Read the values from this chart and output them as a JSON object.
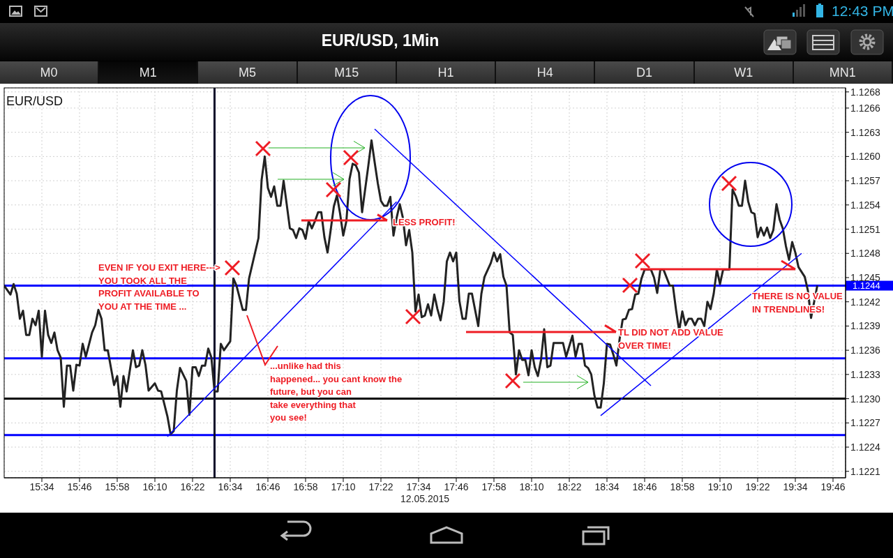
{
  "chart_data": {
    "type": "line",
    "title": "EUR/USD, 1Min",
    "subtitle": "EUR/USD",
    "xlabel": "12.05.2015",
    "x": [
      "2015-05-12T15:22",
      "2015-05-12T15:24",
      "2015-05-12T15:25",
      "2015-05-12T15:26",
      "2015-05-12T15:27",
      "2015-05-12T15:28",
      "2015-05-12T15:29",
      "2015-05-12T15:30",
      "2015-05-12T15:31",
      "2015-05-12T15:32",
      "2015-05-12T15:33",
      "2015-05-12T15:34",
      "2015-05-12T15:35",
      "2015-05-12T15:36",
      "2015-05-12T15:37",
      "2015-05-12T15:38",
      "2015-05-12T15:39",
      "2015-05-12T15:40",
      "2015-05-12T15:41",
      "2015-05-12T15:42",
      "2015-05-12T15:43",
      "2015-05-12T15:44",
      "2015-05-12T15:45",
      "2015-05-12T15:46",
      "2015-05-12T15:47",
      "2015-05-12T15:48",
      "2015-05-12T15:50",
      "2015-05-12T15:51",
      "2015-05-12T15:52",
      "2015-05-12T15:53",
      "2015-05-12T15:54",
      "2015-05-12T15:55",
      "2015-05-12T15:57",
      "2015-05-12T15:58",
      "2015-05-12T15:59",
      "2015-05-12T16:00",
      "2015-05-12T16:01",
      "2015-05-12T16:03",
      "2015-05-12T16:04",
      "2015-05-12T16:05",
      "2015-05-12T16:06",
      "2015-05-12T16:07",
      "2015-05-12T16:08",
      "2015-05-12T16:10",
      "2015-05-12T16:11",
      "2015-05-12T16:12",
      "2015-05-12T16:14",
      "2015-05-12T16:15",
      "2015-05-12T16:16",
      "2015-05-12T16:17",
      "2015-05-12T16:18",
      "2015-05-12T16:20",
      "2015-05-12T16:21",
      "2015-05-12T16:22",
      "2015-05-12T16:23",
      "2015-05-12T16:24",
      "2015-05-12T16:25",
      "2015-05-12T16:26",
      "2015-05-12T16:27",
      "2015-05-12T16:28",
      "2015-05-12T16:29",
      "2015-05-12T16:30",
      "2015-05-12T16:31",
      "2015-05-12T16:32",
      "2015-05-12T16:34",
      "2015-05-12T16:35",
      "2015-05-12T16:36",
      "2015-05-12T16:38",
      "2015-05-12T16:39",
      "2015-05-12T16:40",
      "2015-05-12T16:43",
      "2015-05-12T16:44",
      "2015-05-12T16:45",
      "2015-05-12T16:46",
      "2015-05-12T16:47",
      "2015-05-12T16:48",
      "2015-05-12T16:49",
      "2015-05-12T16:50",
      "2015-05-12T16:51",
      "2015-05-12T16:53",
      "2015-05-12T16:54",
      "2015-05-12T16:55",
      "2015-05-12T16:56",
      "2015-05-12T16:57",
      "2015-05-12T16:58",
      "2015-05-12T16:59",
      "2015-05-12T17:00",
      "2015-05-12T17:01",
      "2015-05-12T17:02",
      "2015-05-12T17:03",
      "2015-05-12T17:04",
      "2015-05-12T17:05",
      "2015-05-12T17:06",
      "2015-05-12T17:07",
      "2015-05-12T17:08",
      "2015-05-12T17:09",
      "2015-05-12T17:10",
      "2015-05-12T17:11",
      "2015-05-12T17:12",
      "2015-05-12T17:13",
      "2015-05-12T17:14",
      "2015-05-12T17:15",
      "2015-05-12T17:16",
      "2015-05-12T17:18",
      "2015-05-12T17:19",
      "2015-05-12T17:20",
      "2015-05-12T17:21",
      "2015-05-12T17:22",
      "2015-05-12T17:23",
      "2015-05-12T17:24",
      "2015-05-12T17:25",
      "2015-05-12T17:26",
      "2015-05-12T17:27",
      "2015-05-12T17:28",
      "2015-05-12T17:29",
      "2015-05-12T17:30",
      "2015-05-12T17:31",
      "2015-05-12T17:32",
      "2015-05-12T17:33",
      "2015-05-12T17:34",
      "2015-05-12T17:35",
      "2015-05-12T17:36",
      "2015-05-12T17:37",
      "2015-05-12T17:38",
      "2015-05-12T17:39",
      "2015-05-12T17:40",
      "2015-05-12T17:41",
      "2015-05-12T17:42",
      "2015-05-12T17:43",
      "2015-05-12T17:44",
      "2015-05-12T17:45",
      "2015-05-12T17:46",
      "2015-05-12T17:47",
      "2015-05-12T17:48",
      "2015-05-12T17:49",
      "2015-05-12T17:50",
      "2015-05-12T17:51",
      "2015-05-12T17:53",
      "2015-05-12T17:54",
      "2015-05-12T17:55",
      "2015-05-12T17:57",
      "2015-05-12T17:58",
      "2015-05-12T17:59",
      "2015-05-12T18:00",
      "2015-05-12T18:01",
      "2015-05-12T18:02",
      "2015-05-12T18:03",
      "2015-05-12T18:04",
      "2015-05-12T18:05",
      "2015-05-12T18:06",
      "2015-05-12T18:07",
      "2015-05-12T18:08",
      "2015-05-12T18:09",
      "2015-05-12T18:10",
      "2015-05-12T18:11",
      "2015-05-12T18:12",
      "2015-05-12T18:13",
      "2015-05-12T18:14",
      "2015-05-12T18:15",
      "2015-05-12T18:16",
      "2015-05-12T18:17",
      "2015-05-12T18:19",
      "2015-05-12T18:20",
      "2015-05-12T18:21",
      "2015-05-12T18:22",
      "2015-05-12T18:23",
      "2015-05-12T18:24",
      "2015-05-12T18:25",
      "2015-05-12T18:26",
      "2015-05-12T18:27",
      "2015-05-12T18:28",
      "2015-05-12T18:29",
      "2015-05-12T18:30",
      "2015-05-12T18:31",
      "2015-05-12T18:32",
      "2015-05-12T18:33",
      "2015-05-12T18:34",
      "2015-05-12T18:35",
      "2015-05-12T18:36",
      "2015-05-12T18:37",
      "2015-05-12T18:38",
      "2015-05-12T18:39",
      "2015-05-12T18:40",
      "2015-05-12T18:41",
      "2015-05-12T18:42",
      "2015-05-12T18:43",
      "2015-05-12T18:44",
      "2015-05-12T18:45",
      "2015-05-12T18:46",
      "2015-05-12T18:48",
      "2015-05-12T18:49",
      "2015-05-12T18:50",
      "2015-05-12T18:51",
      "2015-05-12T18:52",
      "2015-05-12T18:54",
      "2015-05-12T18:55",
      "2015-05-12T18:56",
      "2015-05-12T18:57",
      "2015-05-12T18:58",
      "2015-05-12T18:59",
      "2015-05-12T19:00",
      "2015-05-12T19:01",
      "2015-05-12T19:02",
      "2015-05-12T19:03",
      "2015-05-12T19:04",
      "2015-05-12T19:05",
      "2015-05-12T19:06",
      "2015-05-12T19:07",
      "2015-05-12T19:08",
      "2015-05-12T19:09",
      "2015-05-12T19:10",
      "2015-05-12T19:11",
      "2015-05-12T19:13",
      "2015-05-12T19:14",
      "2015-05-12T19:15",
      "2015-05-12T19:16",
      "2015-05-12T19:17",
      "2015-05-12T19:18",
      "2015-05-12T19:19",
      "2015-05-12T19:20",
      "2015-05-12T19:21",
      "2015-05-12T19:22",
      "2015-05-12T19:23",
      "2015-05-12T19:24",
      "2015-05-12T19:25",
      "2015-05-12T19:26",
      "2015-05-12T19:27",
      "2015-05-12T19:28",
      "2015-05-12T19:29",
      "2015-05-12T19:30",
      "2015-05-12T19:31",
      "2015-05-12T19:32",
      "2015-05-12T19:33",
      "2015-05-12T19:34",
      "2015-05-12T19:35",
      "2015-05-12T19:37",
      "2015-05-12T19:38",
      "2015-05-12T19:39",
      "2015-05-12T19:40",
      "2015-05-12T19:41"
    ],
    "series": [
      {
        "color": "#222222",
        "values": [
          1.1244,
          1.12429,
          1.12442,
          1.1243,
          1.12399,
          1.12409,
          1.12379,
          1.12379,
          1.12399,
          1.12391,
          1.12409,
          1.12352,
          1.12409,
          1.12379,
          1.12369,
          1.12382,
          1.1236,
          1.12351,
          1.1229,
          1.12341,
          1.12341,
          1.1231,
          1.12342,
          1.12341,
          1.12368,
          1.12352,
          1.12382,
          1.12391,
          1.1241,
          1.12399,
          1.1236,
          1.1236,
          1.12317,
          1.12328,
          1.1229,
          1.12328,
          1.12309,
          1.1236,
          1.12339,
          1.12341,
          1.1236,
          1.12342,
          1.1231,
          1.12319,
          1.1231,
          1.12309,
          1.12278,
          1.12256,
          1.1226,
          1.1231,
          1.12338,
          1.12322,
          1.1228,
          1.12339,
          1.12339,
          1.12328,
          1.12341,
          1.12341,
          1.12362,
          1.12351,
          1.12309,
          1.12309,
          1.12368,
          1.1236,
          1.12371,
          1.12449,
          1.1244,
          1.1241,
          1.1241,
          1.12449,
          1.12499,
          1.12571,
          1.126,
          1.12561,
          1.1255,
          1.12563,
          1.12539,
          1.12539,
          1.1257,
          1.12511,
          1.12509,
          1.12499,
          1.12511,
          1.12509,
          1.12498,
          1.1252,
          1.12511,
          1.1252,
          1.12531,
          1.12531,
          1.125,
          1.12481,
          1.12509,
          1.12538,
          1.12552,
          1.12529,
          1.12502,
          1.1252,
          1.12572,
          1.12591,
          1.12589,
          1.1258,
          1.12531,
          1.12589,
          1.1262,
          1.12593,
          1.12567,
          1.12545,
          1.12539,
          1.12539,
          1.1255,
          1.12502,
          1.12524,
          1.12541,
          1.12524,
          1.1249,
          1.12509,
          1.12481,
          1.12408,
          1.12429,
          1.12401,
          1.12403,
          1.12417,
          1.12403,
          1.12429,
          1.12411,
          1.12397,
          1.1242,
          1.1247,
          1.12481,
          1.1247,
          1.12481,
          1.12421,
          1.12399,
          1.12399,
          1.1243,
          1.1243,
          1.1239,
          1.1243,
          1.12451,
          1.12468,
          1.12481,
          1.1247,
          1.12479,
          1.12451,
          1.1244,
          1.12382,
          1.12379,
          1.1233,
          1.1236,
          1.12348,
          1.12348,
          1.12329,
          1.1236,
          1.12339,
          1.12328,
          1.12348,
          1.12386,
          1.12339,
          1.12341,
          1.12369,
          1.12369,
          1.12369,
          1.12352,
          1.12365,
          1.12378,
          1.12352,
          1.12368,
          1.12368,
          1.12341,
          1.12338,
          1.1233,
          1.12304,
          1.12289,
          1.12289,
          1.12319,
          1.12368,
          1.12367,
          1.12355,
          1.12341,
          1.12373,
          1.12398,
          1.12399,
          1.1241,
          1.12411,
          1.12429,
          1.1243,
          1.12449,
          1.1246,
          1.1246,
          1.1245,
          1.12431,
          1.1246,
          1.1246,
          1.1244,
          1.1244,
          1.1241,
          1.12384,
          1.12408,
          1.12391,
          1.12399,
          1.12399,
          1.12391,
          1.12399,
          1.12399,
          1.1239,
          1.1242,
          1.12411,
          1.1243,
          1.1246,
          1.12442,
          1.1246,
          1.1246,
          1.12559,
          1.12551,
          1.12539,
          1.12539,
          1.1257,
          1.12544,
          1.12531,
          1.12529,
          1.125,
          1.12512,
          1.12502,
          1.12512,
          1.12499,
          1.12509,
          1.12541,
          1.12522,
          1.12511,
          1.12489,
          1.12472,
          1.12494,
          1.12481,
          1.12463,
          1.12451,
          1.12434,
          1.124,
          1.1242,
          1.1244
        ]
      },
      {
        "type": "line",
        "color": "#0000ff",
        "x": [
          "2015-05-12T16:14",
          "2015-05-12T17:27"
        ],
        "values": [
          1.12253,
          1.12544
        ]
      },
      {
        "type": "line",
        "color": "#0000ff",
        "x": [
          "2015-05-12T17:20",
          "2015-05-12T18:48"
        ],
        "values": [
          1.12634,
          1.12316
        ]
      },
      {
        "type": "line",
        "color": "#0000ff",
        "x": [
          "2015-05-12T18:32",
          "2015-05-12T19:36"
        ],
        "values": [
          1.12279,
          1.1248
        ]
      }
    ],
    "xlim": [
      "2015-05-12T15:22",
      "2015-05-12T19:50"
    ],
    "xticks": [
      {
        "value": "2015-05-12T15:34",
        "label": "15:34"
      },
      {
        "value": "2015-05-12T15:46",
        "label": "15:46"
      },
      {
        "value": "2015-05-12T15:58",
        "label": "15:58"
      },
      {
        "value": "2015-05-12T16:10",
        "label": "16:10"
      },
      {
        "value": "2015-05-12T16:22",
        "label": "16:22"
      },
      {
        "value": "2015-05-12T16:34",
        "label": "16:34"
      },
      {
        "value": "2015-05-12T16:46",
        "label": "16:46"
      },
      {
        "value": "2015-05-12T16:58",
        "label": "16:58"
      },
      {
        "value": "2015-05-12T17:10",
        "label": "17:10"
      },
      {
        "value": "2015-05-12T17:22",
        "label": "17:22"
      },
      {
        "value": "2015-05-12T17:34",
        "label": "17:34"
      },
      {
        "value": "2015-05-12T17:46",
        "label": "17:46"
      },
      {
        "value": "2015-05-12T17:58",
        "label": "17:58"
      },
      {
        "value": "2015-05-12T18:10",
        "label": "18:10"
      },
      {
        "value": "2015-05-12T18:22",
        "label": "18:22"
      },
      {
        "value": "2015-05-12T18:34",
        "label": "18:34"
      },
      {
        "value": "2015-05-12T18:46",
        "label": "18:46"
      },
      {
        "value": "2015-05-12T18:58",
        "label": "18:58"
      },
      {
        "value": "2015-05-12T19:10",
        "label": "19:10"
      },
      {
        "value": "2015-05-12T19:22",
        "label": "19:22"
      },
      {
        "value": "2015-05-12T19:34",
        "label": "19:34"
      },
      {
        "value": "2015-05-12T19:46",
        "label": "19:46"
      }
    ],
    "ylim": [
      1.12202,
      1.12685
    ],
    "yticks": [
      1.1221,
      1.1224,
      1.1227,
      {
        "value": 1.123,
        "label": "1.1230"
      },
      1.1233,
      1.1236,
      1.1239,
      1.1242,
      1.1245,
      1.1248,
      1.1251,
      1.1254,
      1.1257,
      {
        "value": 1.126,
        "label": "1.1260"
      },
      1.1263,
      1.1266,
      1.1268
    ],
    "grid": true,
    "ref_lines": [
      {
        "axis": "y",
        "value": 1.1244,
        "label": "1.1244",
        "color": "#0000ff"
      },
      {
        "axis": "y",
        "value": 1.1235,
        "color": "#0000ff"
      },
      {
        "axis": "y",
        "value": 1.12255,
        "color": "#0000ff"
      },
      {
        "axis": "y",
        "value": 1.123,
        "color": "#000000"
      },
      {
        "axis": "x",
        "value": "2015-05-12T16:29",
        "color": "#0a0a2a"
      }
    ],
    "annotations": [
      "M0",
      "M1",
      "M5",
      "M15",
      "H1",
      "H4",
      "D1",
      "W1",
      "MN1",
      "12:43 PM",
      "EVEN IF YOU EXIT HERE--->\nYOU TOOK ALL THE\nPROFIT AVAILABLE TO\nYOU AT THE TIME ...",
      "...unlike had this\nhappened... you cant know the\nfuture, but you can\ntake everything that\nyou see!",
      "LESS PROFIT!",
      "TL DID NOT ADD VALUE\nOVER TIME!",
      "THERE IS NO VALUE\nIN TRENDLINES!"
    ]
  }
}
